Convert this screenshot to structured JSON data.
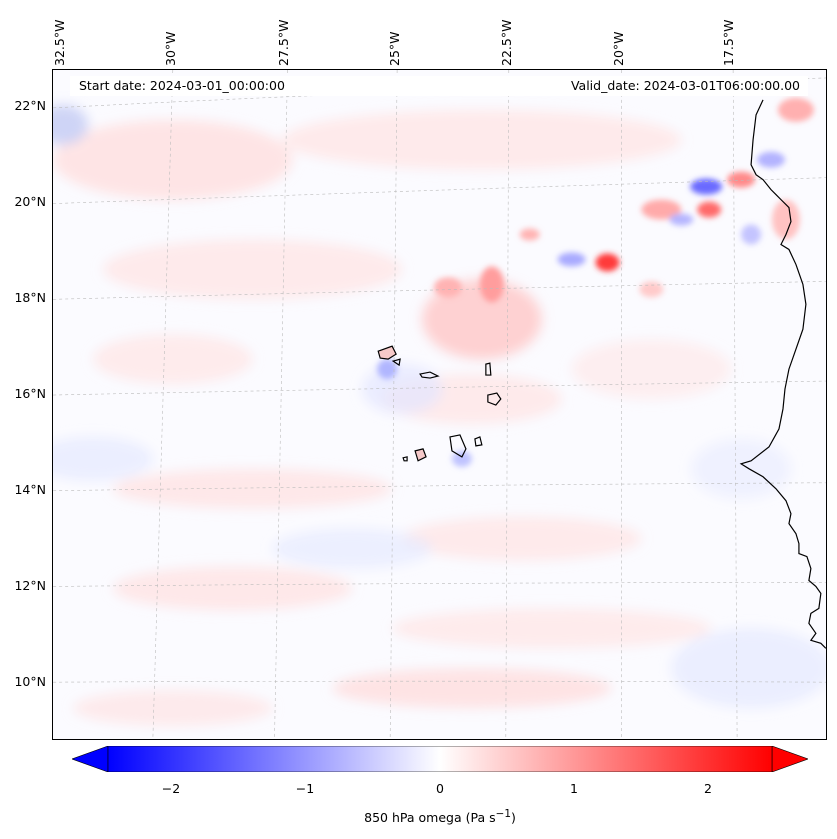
{
  "map": {
    "projection": "Lambert-like regional map",
    "region": "Cabo Verde and West African coast"
  },
  "header": {
    "start_date": "Start date: 2024-03-01_00:00:00",
    "valid_date": "Valid_date: 2024-03-01T06:00:00.00"
  },
  "axes": {
    "longitude_labels": [
      "32.5°W",
      "30°W",
      "27.5°W",
      "25°W",
      "22.5°W",
      "20°W",
      "17.5°W"
    ],
    "latitude_labels": [
      "22°N",
      "20°N",
      "18°N",
      "16°N",
      "14°N",
      "12°N",
      "10°N"
    ]
  },
  "colorbar": {
    "min": -2.6,
    "max": 2.6,
    "ticks": [
      "−2",
      "−1",
      "0",
      "1",
      "2"
    ],
    "tick_values": [
      -2,
      -1,
      0,
      1,
      2
    ],
    "label": "850 hPa omega (Pa s",
    "label_sup": "−1",
    "label_end": ")",
    "colors": {
      "negative": "#0000ff",
      "zero": "#ffffff",
      "positive": "#ff0000"
    }
  }
}
